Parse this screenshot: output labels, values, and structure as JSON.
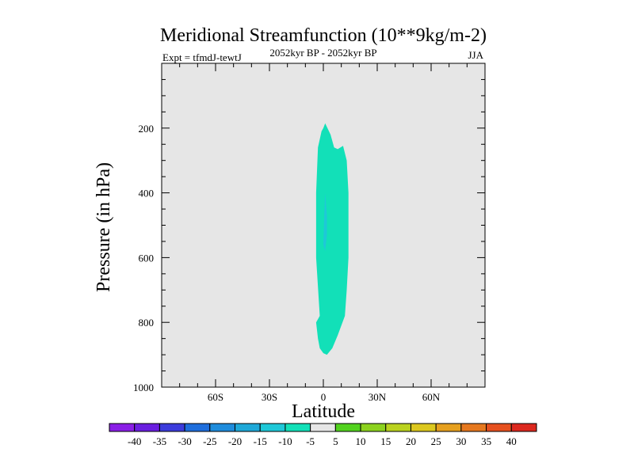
{
  "chart_data": {
    "type": "contour",
    "title": "Meridional Streamfunction (10**9kg/m-2)",
    "left_label": "Expt = tfmdJ-tewtJ",
    "center_label": "2052kyr BP - 2052kyr BP",
    "right_label": "JJA",
    "xlabel": "Latitude",
    "ylabel": "Pressure (in hPa)",
    "xlim": [
      -90,
      90
    ],
    "ylim": [
      1000,
      0
    ],
    "x_ticks": [
      {
        "value": -60,
        "label": "60S"
      },
      {
        "value": -30,
        "label": "30S"
      },
      {
        "value": 0,
        "label": "0"
      },
      {
        "value": 30,
        "label": "30N"
      },
      {
        "value": 60,
        "label": "60N"
      }
    ],
    "y_ticks": [
      200,
      400,
      600,
      800,
      1000
    ],
    "background_fill": "#e6e6e6",
    "regions": [
      {
        "name": "cell-minus-10-to-minus-5",
        "value_range": [
          -10,
          -5
        ],
        "color": "#12e0b8",
        "outline": [
          [
            -2,
            780
          ],
          [
            -4,
            600
          ],
          [
            -4,
            400
          ],
          [
            -3,
            260
          ],
          [
            -1,
            210
          ],
          [
            0,
            200
          ],
          [
            1,
            185
          ],
          [
            4,
            220
          ],
          [
            6,
            260
          ],
          [
            8,
            265
          ],
          [
            11,
            255
          ],
          [
            13,
            300
          ],
          [
            14,
            400
          ],
          [
            14,
            600
          ],
          [
            13,
            700
          ],
          [
            12,
            780
          ],
          [
            8,
            840
          ],
          [
            5,
            880
          ],
          [
            2,
            900
          ],
          [
            0,
            895
          ],
          [
            -2,
            880
          ],
          [
            -3,
            850
          ],
          [
            -4,
            800
          ]
        ]
      },
      {
        "name": "cell-minus-15-to-minus-10",
        "value_range": [
          -15,
          -10
        ],
        "color": "#1ec8d8",
        "outline": [
          [
            1,
            400
          ],
          [
            2,
            470
          ],
          [
            2,
            530
          ],
          [
            1,
            580
          ],
          [
            0,
            560
          ],
          [
            0.5,
            470
          ]
        ]
      }
    ],
    "colorbar": {
      "labels": [
        "-40",
        "-35",
        "-30",
        "-25",
        "-20",
        "-15",
        "-10",
        "-5",
        "5",
        "10",
        "15",
        "20",
        "25",
        "30",
        "35",
        "40"
      ],
      "colors": [
        "#8a1ee6",
        "#6a1ee0",
        "#3c3cdc",
        "#1e6edc",
        "#1e8cdc",
        "#1ea8d8",
        "#1ec8d8",
        "#12e0b8",
        "#e6e6e6",
        "#52d21e",
        "#8cd21e",
        "#bad21e",
        "#dcc81e",
        "#e6a01e",
        "#e6781e",
        "#e6501e",
        "#dc281e"
      ]
    }
  }
}
